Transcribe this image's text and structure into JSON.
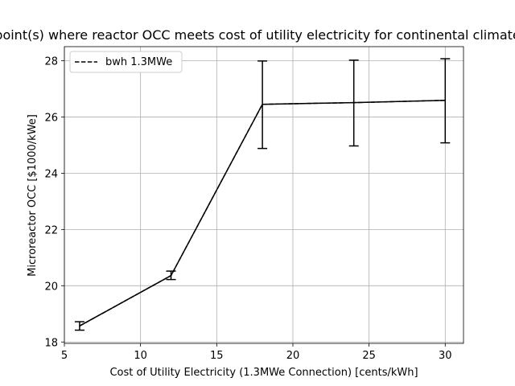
{
  "chart_data": {
    "type": "line",
    "title": "point(s) where reactor OCC meets cost of utility electricity for continental climate",
    "xlabel": "Cost of Utility Electricity (1.3MWe Connection) [cents/kWh]",
    "ylabel": "Microreactor OCC [$1000/kWe]",
    "xlim": [
      5,
      31.2
    ],
    "ylim": [
      17.95,
      28.5
    ],
    "xticks": [
      5,
      10,
      15,
      20,
      25,
      30
    ],
    "yticks": [
      18,
      20,
      22,
      24,
      26,
      28
    ],
    "grid": true,
    "legend_position": "top-left",
    "series": [
      {
        "name": "bwh 1.3MWe",
        "style": "dashed",
        "color": "#000000",
        "x": [
          6,
          12,
          18,
          24,
          30
        ],
        "y": [
          18.57,
          20.36,
          26.45,
          26.51,
          26.59
        ],
        "err_low": [
          18.42,
          20.22,
          24.88,
          24.97,
          25.08
        ],
        "err_high": [
          18.72,
          20.52,
          27.99,
          28.02,
          28.07
        ]
      }
    ]
  }
}
